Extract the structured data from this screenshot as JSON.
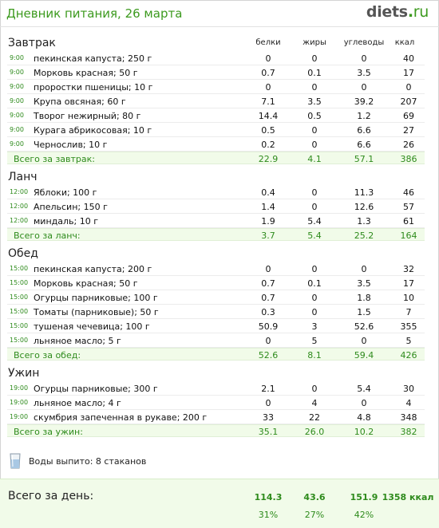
{
  "header": {
    "title": "Дневник питания, 26 марта",
    "logo_name": "diets",
    "logo_dot": ".",
    "logo_tld": "ru"
  },
  "columns": {
    "protein": "белки",
    "fat": "жиры",
    "carbs": "углеводы",
    "kcal": "ккал"
  },
  "meals": [
    {
      "title": "Завтрак",
      "items": [
        {
          "time": "9:00",
          "name": "пекинская капуста; 250 г",
          "protein": "0",
          "fat": "0",
          "carbs": "0",
          "kcal": "40"
        },
        {
          "time": "9:00",
          "name": "Морковь красная; 50 г",
          "protein": "0.7",
          "fat": "0.1",
          "carbs": "3.5",
          "kcal": "17"
        },
        {
          "time": "9:00",
          "name": "проростки пшеницы; 10 г",
          "protein": "0",
          "fat": "0",
          "carbs": "0",
          "kcal": "0"
        },
        {
          "time": "9:00",
          "name": "Крупа овсяная; 60 г",
          "protein": "7.1",
          "fat": "3.5",
          "carbs": "39.2",
          "kcal": "207"
        },
        {
          "time": "9:00",
          "name": "Творог нежирный; 80 г",
          "protein": "14.4",
          "fat": "0.5",
          "carbs": "1.2",
          "kcal": "69"
        },
        {
          "time": "9:00",
          "name": "Курага абрикосовая; 10 г",
          "protein": "0.5",
          "fat": "0",
          "carbs": "6.6",
          "kcal": "27"
        },
        {
          "time": "9:00",
          "name": "Чернослив; 10 г",
          "protein": "0.2",
          "fat": "0",
          "carbs": "6.6",
          "kcal": "26"
        }
      ],
      "total": {
        "label": "Всего за завтрак:",
        "protein": "22.9",
        "fat": "4.1",
        "carbs": "57.1",
        "kcal": "386"
      }
    },
    {
      "title": "Ланч",
      "items": [
        {
          "time": "12:00",
          "name": "Яблоки; 100 г",
          "protein": "0.4",
          "fat": "0",
          "carbs": "11.3",
          "kcal": "46"
        },
        {
          "time": "12:00",
          "name": "Апельсин; 150 г",
          "protein": "1.4",
          "fat": "0",
          "carbs": "12.6",
          "kcal": "57"
        },
        {
          "time": "12:00",
          "name": "миндаль; 10 г",
          "protein": "1.9",
          "fat": "5.4",
          "carbs": "1.3",
          "kcal": "61"
        }
      ],
      "total": {
        "label": "Всего за ланч:",
        "protein": "3.7",
        "fat": "5.4",
        "carbs": "25.2",
        "kcal": "164"
      }
    },
    {
      "title": "Обед",
      "items": [
        {
          "time": "15:00",
          "name": "пекинская капуста; 200 г",
          "protein": "0",
          "fat": "0",
          "carbs": "0",
          "kcal": "32"
        },
        {
          "time": "15:00",
          "name": "Морковь красная; 50 г",
          "protein": "0.7",
          "fat": "0.1",
          "carbs": "3.5",
          "kcal": "17"
        },
        {
          "time": "15:00",
          "name": "Огурцы парниковые; 100 г",
          "protein": "0.7",
          "fat": "0",
          "carbs": "1.8",
          "kcal": "10"
        },
        {
          "time": "15:00",
          "name": "Томаты (парниковые); 50 г",
          "protein": "0.3",
          "fat": "0",
          "carbs": "1.5",
          "kcal": "7"
        },
        {
          "time": "15:00",
          "name": "тушеная чечевица; 100 г",
          "protein": "50.9",
          "fat": "3",
          "carbs": "52.6",
          "kcal": "355"
        },
        {
          "time": "15:00",
          "name": "льняное масло; 5 г",
          "protein": "0",
          "fat": "5",
          "carbs": "0",
          "kcal": "5"
        }
      ],
      "total": {
        "label": "Всего за обед:",
        "protein": "52.6",
        "fat": "8.1",
        "carbs": "59.4",
        "kcal": "426"
      }
    },
    {
      "title": "Ужин",
      "items": [
        {
          "time": "19:00",
          "name": "Огурцы парниковые; 300 г",
          "protein": "2.1",
          "fat": "0",
          "carbs": "5.4",
          "kcal": "30"
        },
        {
          "time": "19:00",
          "name": "льняное масло; 4 г",
          "protein": "0",
          "fat": "4",
          "carbs": "0",
          "kcal": "4"
        },
        {
          "time": "19:00",
          "name": "скумбрия запеченная в рукаве; 200 г",
          "protein": "33",
          "fat": "22",
          "carbs": "4.8",
          "kcal": "348"
        }
      ],
      "total": {
        "label": "Всего за ужин:",
        "protein": "35.1",
        "fat": "26.0",
        "carbs": "10.2",
        "kcal": "382"
      }
    }
  ],
  "water": {
    "icon": "water-glass-icon",
    "label": "Воды выпито: 8 стаканов"
  },
  "day_total": {
    "label": "Всего за день:",
    "protein": "114.3",
    "fat": "43.6",
    "carbs": "151.9",
    "kcal": "1358 ккал",
    "protein_pct": "31%",
    "fat_pct": "27%",
    "carbs_pct": "42%"
  },
  "colors": {
    "accent": "#3c9a1e",
    "total_bg": "#f1fbe9"
  }
}
